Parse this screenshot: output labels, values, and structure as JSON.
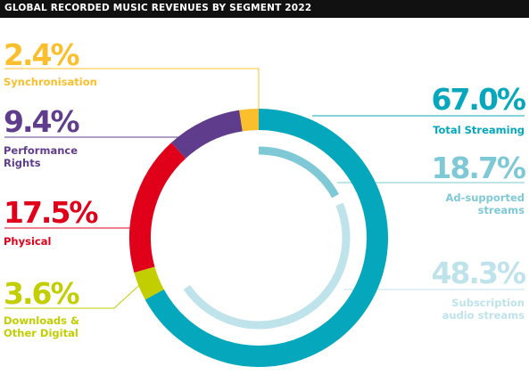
{
  "header": {
    "title": "GLOBAL RECORDED MUSIC REVENUES BY SEGMENT 2022"
  },
  "colors": {
    "streaming": "#04A7BC",
    "ad_supported": "#7FC9D6",
    "subscription": "#BFE3EA",
    "physical": "#E1001A",
    "performance": "#5F3D8C",
    "synchronisation": "#FBBF2D",
    "downloads": "#C2CE00"
  },
  "chart_data": {
    "type": "pie",
    "title": "GLOBAL RECORDED MUSIC REVENUES BY SEGMENT 2022",
    "unit": "%",
    "segments": [
      {
        "key": "streaming",
        "label": "Total Streaming",
        "value": 67.0,
        "display": "67.0%"
      },
      {
        "key": "downloads",
        "label": "Downloads &\nOther Digital",
        "value": 3.6,
        "display": "3.6%"
      },
      {
        "key": "physical",
        "label": "Physical",
        "value": 17.5,
        "display": "17.5%"
      },
      {
        "key": "performance",
        "label": "Performance\nRights",
        "value": 9.4,
        "display": "9.4%"
      },
      {
        "key": "synchronisation",
        "label": "Synchronisation",
        "value": 2.4,
        "display": "2.4%"
      }
    ],
    "streaming_breakdown": [
      {
        "key": "ad_supported",
        "label": "Ad-supported\nstreams",
        "value": 18.7,
        "display": "18.7%"
      },
      {
        "key": "subscription",
        "label": "Subscription\naudio streams",
        "value": 48.3,
        "display": "48.3%"
      }
    ]
  }
}
